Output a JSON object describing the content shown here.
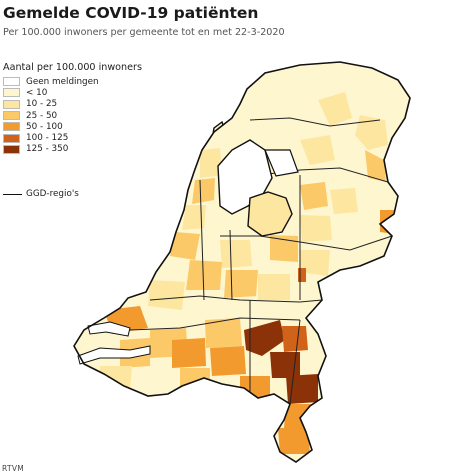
{
  "title": "Gemelde COVID-19 patiënten",
  "subtitle": "Per 100.000 inwoners per gemeente tot en met 22-3-2020",
  "legend": {
    "title": "Aantal per 100.000 inwoners",
    "classes": [
      {
        "label": "Geen meldingen",
        "color": "#ffffff"
      },
      {
        "label": "< 10",
        "color": "#fef6cf"
      },
      {
        "label": "10 - 25",
        "color": "#fde6a0"
      },
      {
        "label": "25 - 50",
        "color": "#fbc968"
      },
      {
        "label": "50 - 100",
        "color": "#f29a2e"
      },
      {
        "label": "100 - 125",
        "color": "#d0621a"
      },
      {
        "label": "125 - 350",
        "color": "#8b3208"
      }
    ],
    "boundary_label": "GGD-regio's"
  },
  "source": "RTVM"
}
